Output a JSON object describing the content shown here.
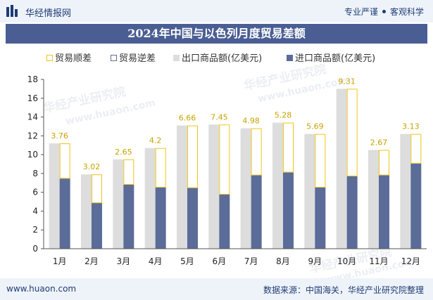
{
  "header": {
    "brand": "华经情报网",
    "tagline_left": "专业严谨",
    "tagline_right": "客观科学"
  },
  "watermark": {
    "text_cn": "华经产业研究院",
    "text_en": "www.huaon.com"
  },
  "footer": {
    "site": "www.huaon.com",
    "source": "数据来源：中国海关，华经产业研究院整理"
  },
  "colors": {
    "brand_navy": "#1f3c73",
    "title_bar": "#4a5e93",
    "export_bar": "#dddddd",
    "import_bar": "#5b6c98",
    "surplus_outline": "#f0c419",
    "deficit_outline": "#5b6c98"
  },
  "chart_data": {
    "type": "bar",
    "title": "2024年中国与以色列月度贸易差额",
    "categories": [
      "1月",
      "2月",
      "3月",
      "4月",
      "5月",
      "6月",
      "7月",
      "8月",
      "9月",
      "10月",
      "11月",
      "12月"
    ],
    "series": [
      {
        "name": "贸易顺差",
        "values": [
          3.76,
          3.02,
          2.65,
          4.2,
          6.66,
          7.45,
          4.98,
          5.28,
          5.69,
          9.31,
          2.67,
          3.13
        ]
      },
      {
        "name": "贸易逆差",
        "values": [
          0,
          0,
          0,
          0,
          0,
          0,
          0,
          0,
          0,
          0,
          0,
          0
        ]
      },
      {
        "name": "出口商品额(亿美元)",
        "values": [
          11.2,
          7.9,
          9.5,
          10.7,
          13.1,
          13.2,
          12.8,
          13.4,
          12.2,
          17.0,
          10.5,
          12.2
        ]
      },
      {
        "name": "进口商品额(亿美元)",
        "values": [
          7.45,
          4.85,
          6.8,
          6.5,
          6.45,
          5.75,
          7.8,
          8.1,
          6.5,
          7.7,
          7.8,
          9.05
        ]
      }
    ],
    "data_labels": [
      "3.76",
      "3.02",
      "2.65",
      "4.2",
      "6.66",
      "7.45",
      "4.98",
      "5.28",
      "5.69",
      "9.31",
      "2.67",
      "3.13"
    ],
    "ylim": [
      0,
      18
    ],
    "yticks": [
      0,
      2,
      4,
      6,
      8,
      10,
      12,
      14,
      16,
      18
    ],
    "xlabel": "",
    "ylabel": "",
    "grid": false,
    "legend_position": "top"
  }
}
